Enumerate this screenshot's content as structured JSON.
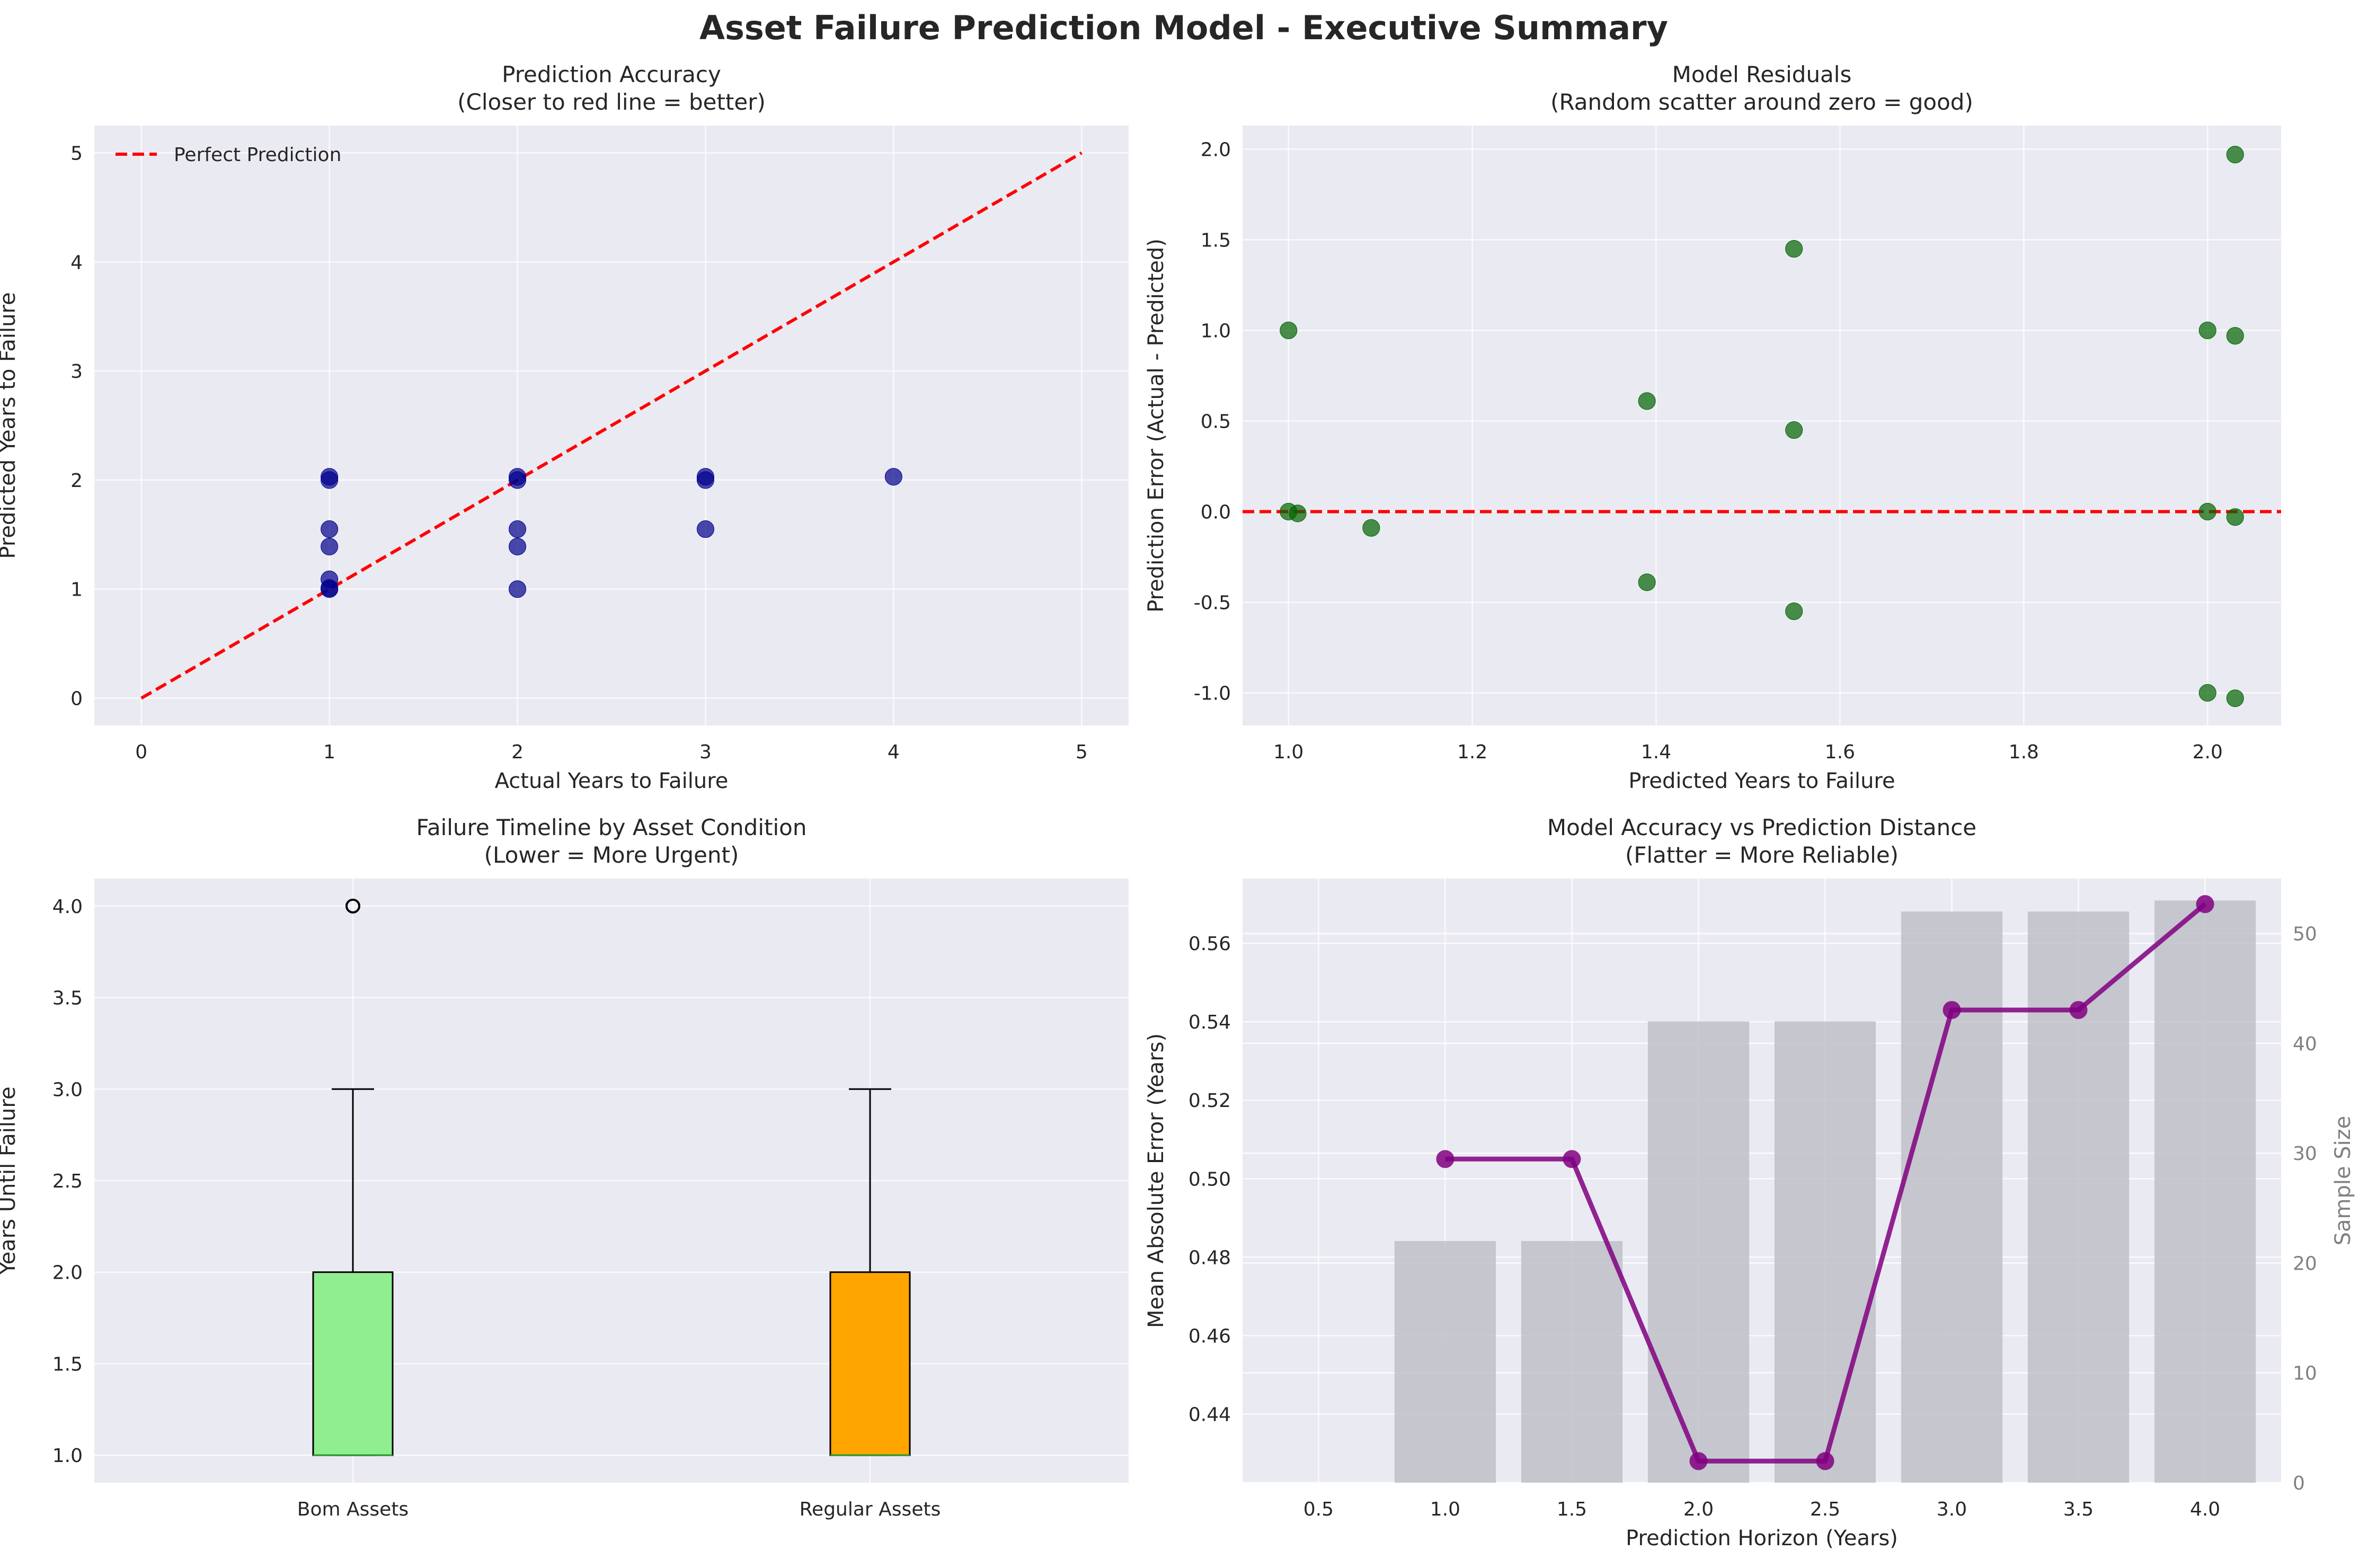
{
  "figure": {
    "title": "Asset Failure Prediction Model - Executive Summary"
  },
  "colors": {
    "panel_bg": "#eaeaf2",
    "grid": "#ffffff",
    "red": "#ff0000",
    "navy": "#00008b",
    "green": "#006400",
    "purple": "#800080",
    "lightgreen": "#90ee90",
    "orange": "#ffa500",
    "gray_bar": "#c0c0c8"
  },
  "chart_data": [
    {
      "type": "scatter",
      "title": "Prediction Accuracy\n(Closer to red line = better)",
      "xlabel": "Actual Years to Failure",
      "ylabel": "Predicted Years to Failure",
      "xlim": [
        -0.25,
        5.25
      ],
      "ylim": [
        -0.25,
        5.25
      ],
      "xticks": [
        0,
        1,
        2,
        3,
        4,
        5
      ],
      "yticks": [
        0,
        1,
        2,
        3,
        4,
        5
      ],
      "legend": {
        "position": "top-left",
        "entries": [
          "Perfect Prediction"
        ]
      },
      "reference_line": {
        "name": "Perfect Prediction",
        "x": [
          0,
          5
        ],
        "y": [
          0,
          5
        ],
        "style": "dashed",
        "color": "#ff0000"
      },
      "points": [
        {
          "x": 1,
          "y": 1.0
        },
        {
          "x": 1,
          "y": 1.01
        },
        {
          "x": 1,
          "y": 1.09
        },
        {
          "x": 1,
          "y": 1.39
        },
        {
          "x": 1,
          "y": 1.55
        },
        {
          "x": 1,
          "y": 2.0
        },
        {
          "x": 1,
          "y": 2.03
        },
        {
          "x": 2,
          "y": 1.0
        },
        {
          "x": 2,
          "y": 1.39
        },
        {
          "x": 2,
          "y": 1.55
        },
        {
          "x": 2,
          "y": 2.0
        },
        {
          "x": 2,
          "y": 2.03
        },
        {
          "x": 3,
          "y": 1.55
        },
        {
          "x": 3,
          "y": 2.0
        },
        {
          "x": 3,
          "y": 2.03
        },
        {
          "x": 4,
          "y": 2.03
        }
      ]
    },
    {
      "type": "scatter",
      "title": "Model Residuals\n(Random scatter around zero = good)",
      "xlabel": "Predicted Years to Failure",
      "ylabel": "Prediction Error (Actual - Predicted)",
      "xlim": [
        0.95,
        2.08
      ],
      "ylim": [
        -1.18,
        2.13
      ],
      "xticks": [
        1.0,
        1.2,
        1.4,
        1.6,
        1.8,
        2.0
      ],
      "yticks": [
        -1.0,
        -0.5,
        0.0,
        0.5,
        1.0,
        1.5,
        2.0
      ],
      "reference_line": {
        "y": 0,
        "style": "dashed",
        "color": "#ff0000"
      },
      "points": [
        {
          "x": 1.0,
          "y": 1.0
        },
        {
          "x": 1.0,
          "y": 0.0
        },
        {
          "x": 1.01,
          "y": -0.01
        },
        {
          "x": 1.09,
          "y": -0.09
        },
        {
          "x": 1.39,
          "y": 0.61
        },
        {
          "x": 1.39,
          "y": -0.39
        },
        {
          "x": 1.55,
          "y": 1.45
        },
        {
          "x": 1.55,
          "y": 0.45
        },
        {
          "x": 1.55,
          "y": -0.55
        },
        {
          "x": 2.0,
          "y": 1.0
        },
        {
          "x": 2.0,
          "y": 0.0
        },
        {
          "x": 2.0,
          "y": -1.0
        },
        {
          "x": 2.03,
          "y": 1.97
        },
        {
          "x": 2.03,
          "y": 0.97
        },
        {
          "x": 2.03,
          "y": -0.03
        },
        {
          "x": 2.03,
          "y": -1.03
        }
      ]
    },
    {
      "type": "box",
      "title": "Failure Timeline by Asset Condition\n(Lower = More Urgent)",
      "xlabel": "",
      "ylabel": "Years Until Failure",
      "ylim": [
        0.85,
        4.15
      ],
      "yticks": [
        1.0,
        1.5,
        2.0,
        2.5,
        3.0,
        3.5,
        4.0
      ],
      "categories": [
        "Bom Assets",
        "Regular Assets"
      ],
      "boxes": [
        {
          "name": "Bom Assets",
          "min": 1,
          "q1": 1,
          "median": 1,
          "q3": 2,
          "max": 3,
          "outliers": [
            4
          ],
          "color": "#90ee90"
        },
        {
          "name": "Regular Assets",
          "min": 1,
          "q1": 1,
          "median": 1,
          "q3": 2,
          "max": 3,
          "outliers": [],
          "color": "#ffa500"
        }
      ]
    },
    {
      "type": "line",
      "title": "Model Accuracy vs Prediction Distance\n(Flatter = More Reliable)",
      "xlabel": "Prediction Horizon (Years)",
      "ylabel": "Mean Absolute Error (Years)",
      "y2label": "Sample Size",
      "xlim": [
        0.2,
        4.3
      ],
      "ylim": [
        0.4225,
        0.5765
      ],
      "y2lim": [
        0,
        55
      ],
      "xticks": [
        0.5,
        1.0,
        1.5,
        2.0,
        2.5,
        3.0,
        3.5,
        4.0
      ],
      "yticks": [
        0.44,
        0.46,
        0.48,
        0.5,
        0.52,
        0.54,
        0.56
      ],
      "y2ticks": [
        0,
        10,
        20,
        30,
        40,
        50
      ],
      "series": [
        {
          "x": [
            1.0,
            1.5,
            2.0,
            2.5,
            3.0,
            3.5,
            4.0
          ],
          "y": [
            0.505,
            0.505,
            0.428,
            0.428,
            0.543,
            0.543,
            0.57
          ]
        }
      ],
      "bars": {
        "x": [
          1.0,
          1.5,
          2.0,
          2.5,
          3.0,
          3.5,
          4.0
        ],
        "values": [
          22,
          22,
          42,
          42,
          52,
          52,
          53
        ]
      }
    }
  ]
}
